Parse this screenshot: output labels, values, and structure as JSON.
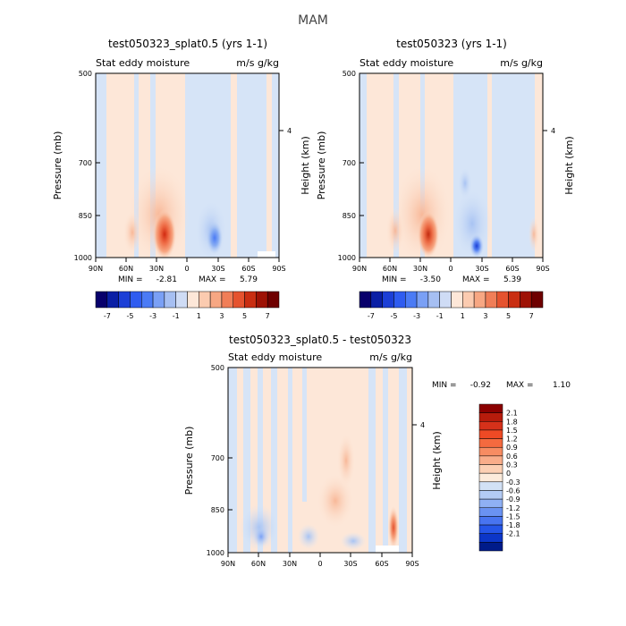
{
  "page": {
    "title": "MAM"
  },
  "chart_data": [
    {
      "type": "heatmap",
      "title": "test050323_splat0.5 (yrs 1-1)",
      "left_label": "Stat eddy moisture",
      "right_label": "m/s g/kg",
      "xlabel": "",
      "ylabel": "Pressure (mb)",
      "ylabel_right": "Height (km)",
      "xticks": [
        "90N",
        "60N",
        "30N",
        "0",
        "30S",
        "60S",
        "90S"
      ],
      "yticks": [
        "500",
        "700",
        "850",
        "1000"
      ],
      "yticks_right": [
        "4"
      ],
      "xlim": [
        90,
        -90
      ],
      "ylim": [
        1000,
        500
      ],
      "min_label": "MIN =",
      "min_value": "-2.81",
      "max_label": "MAX =",
      "max_value": "5.79",
      "colorbar": {
        "orientation": "horizontal",
        "labels": [
          "-7",
          "-5",
          "-3",
          "-1",
          "1",
          "3",
          "5",
          "7"
        ],
        "colors": [
          "#08006b",
          "#0a1fa5",
          "#1c3fd6",
          "#2f5cf0",
          "#4b7bf5",
          "#7aa0f5",
          "#a6bff2",
          "#cfdcf5",
          "#fde7d8",
          "#fbcbb0",
          "#f7a783",
          "#f07e58",
          "#e5532f",
          "#c92e12",
          "#9e1205",
          "#6e0000"
        ]
      },
      "features": [
        {
          "name": "maximum",
          "lat": 20,
          "pressure": 920,
          "value": 5.79
        },
        {
          "name": "minimum",
          "lat": -25,
          "pressure": 950,
          "value": -2.81
        }
      ]
    },
    {
      "type": "heatmap",
      "title": "test050323 (yrs 1-1)",
      "left_label": "Stat eddy moisture",
      "right_label": "m/s g/kg",
      "xlabel": "",
      "ylabel": "Pressure (mb)",
      "ylabel_right": "Height (km)",
      "xticks": [
        "90N",
        "60N",
        "30N",
        "0",
        "30S",
        "60S",
        "90S"
      ],
      "yticks": [
        "500",
        "700",
        "850",
        "1000"
      ],
      "yticks_right": [
        "4"
      ],
      "xlim": [
        90,
        -90
      ],
      "ylim": [
        1000,
        500
      ],
      "min_label": "MIN =",
      "min_value": "-3.50",
      "max_label": "MAX =",
      "max_value": "5.39",
      "colorbar": {
        "orientation": "horizontal",
        "labels": [
          "-7",
          "-5",
          "-3",
          "-1",
          "1",
          "3",
          "5",
          "7"
        ],
        "colors": [
          "#08006b",
          "#0a1fa5",
          "#1c3fd6",
          "#2f5cf0",
          "#4b7bf5",
          "#7aa0f5",
          "#a6bff2",
          "#cfdcf5",
          "#fde7d8",
          "#fbcbb0",
          "#f7a783",
          "#f07e58",
          "#e5532f",
          "#c92e12",
          "#9e1205",
          "#6e0000"
        ]
      },
      "features": [
        {
          "name": "maximum",
          "lat": 22,
          "pressure": 920,
          "value": 5.39
        },
        {
          "name": "minimum",
          "lat": -28,
          "pressure": 960,
          "value": -3.5
        }
      ]
    },
    {
      "type": "heatmap",
      "title": "test050323_splat0.5 - test050323",
      "left_label": "Stat eddy moisture",
      "right_label": "m/s g/kg",
      "xlabel": "",
      "ylabel": "Pressure (mb)",
      "ylabel_right": "Height (km)",
      "xticks": [
        "90N",
        "60N",
        "30N",
        "0",
        "30S",
        "60S",
        "90S"
      ],
      "yticks": [
        "500",
        "700",
        "850",
        "1000"
      ],
      "yticks_right": [
        "4"
      ],
      "xlim": [
        90,
        -90
      ],
      "ylim": [
        1000,
        500
      ],
      "min_label": "MIN =",
      "min_value": "-0.92",
      "max_label": "MAX =",
      "max_value": "1.10",
      "colorbar": {
        "orientation": "vertical",
        "labels": [
          "2.1",
          "1.8",
          "1.5",
          "1.2",
          "0.9",
          "0.6",
          "0.3",
          "0",
          "-0.3",
          "-0.6",
          "-0.9",
          "-1.2",
          "-1.5",
          "-1.8",
          "-2.1"
        ],
        "colors": [
          "#8b0000",
          "#b71c0c",
          "#d6311a",
          "#ee4a25",
          "#f46a3f",
          "#f78c62",
          "#f9ad8a",
          "#fcd0b4",
          "#fcebdb",
          "#d2e1f5",
          "#b3cbf4",
          "#8fb0f4",
          "#6a92f2",
          "#4874f0",
          "#2555e8",
          "#0c36c8",
          "#001b8a"
        ]
      },
      "features": [
        {
          "name": "maximum",
          "lat": -70,
          "pressure": 900,
          "value": 1.1
        },
        {
          "name": "minimum",
          "lat": 60,
          "pressure": 950,
          "value": -0.92
        }
      ]
    }
  ]
}
